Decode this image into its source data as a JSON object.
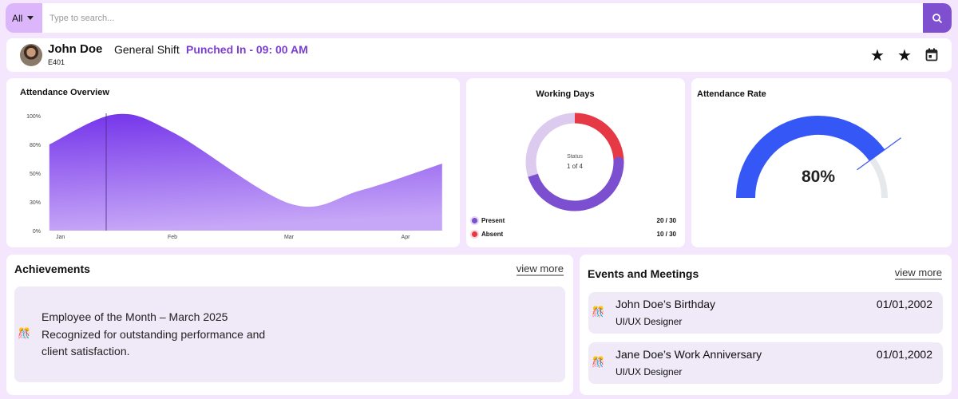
{
  "search": {
    "category": "All",
    "placeholder": "Type to search..."
  },
  "header": {
    "name": "John Doe",
    "employee_id": "E401",
    "shift": "General Shift",
    "punch_status": "Punched In - 09: 00 AM",
    "icons": [
      "star-icon",
      "star-icon",
      "calendar-icon"
    ]
  },
  "colors": {
    "accent": "#7e4fcf",
    "punch": "#7b3fd0",
    "absent": "#e63946",
    "present": "#7b4fcf",
    "gauge": "#3557f5"
  },
  "chart_data": [
    {
      "type": "area",
      "title": "Attendance Overview",
      "categories": [
        "Jan",
        "Feb",
        "Mar",
        "Apr"
      ],
      "y_ticks": [
        "0%",
        "30%",
        "50%",
        "80%",
        "100%"
      ],
      "x": [
        -0.07,
        0.5,
        1.0,
        2.0,
        2.6,
        3.3
      ],
      "values": [
        80,
        101,
        88,
        28,
        38,
        60
      ],
      "grid": false
    },
    {
      "type": "pie",
      "title": "Working Days",
      "center_label": "Status",
      "center_value": "1 of 4",
      "legend": [
        {
          "label": "Present",
          "value": "20 / 30"
        },
        {
          "label": "Absent",
          "value": "10 / 30"
        }
      ],
      "segments": [
        {
          "label": "Absent",
          "fraction": 0.25
        },
        {
          "label": "Present",
          "fraction": 0.45
        },
        {
          "label": "Remaining",
          "fraction": 0.3
        }
      ]
    },
    {
      "type": "gauge",
      "title": "Attendance Rate",
      "value": 80,
      "label": "80%"
    }
  ],
  "achievements": {
    "title": "Achievements",
    "view_more": "view more",
    "items": [
      {
        "icon": "🎊",
        "lines": [
          "Employee of the Month – March 2025",
          "Recognized for outstanding performance and",
          "client satisfaction."
        ]
      }
    ]
  },
  "events": {
    "title": "Events and Meetings",
    "view_more": "view more",
    "items": [
      {
        "icon": "🎊",
        "title": "John Doe’s Birthday",
        "role": "UI/UX Designer",
        "date": "01/01,2002"
      },
      {
        "icon": "🎊",
        "title": "Jane Doe’s Work Anniversary",
        "role": "UI/UX Designer",
        "date": "01/01,2002"
      }
    ]
  }
}
